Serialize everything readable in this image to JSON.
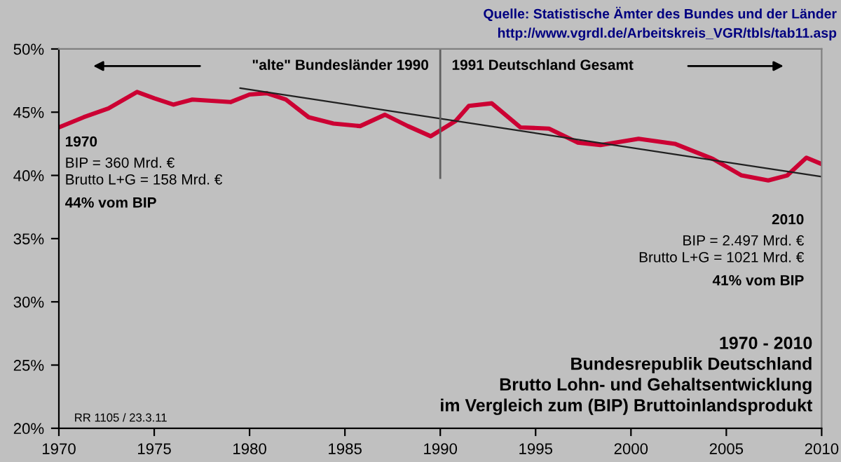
{
  "chart_data": {
    "type": "line",
    "title": "1970 - 2010\nBundesrepublik Deutschland\nBrutto Lohn- und Gehaltsentwicklung\nim Vergleich zum (BIP) Bruttoinlandsprodukt",
    "series": [
      {
        "color": "#cc0033",
        "x": [
          1970,
          1971.3,
          1972.6,
          1974.1,
          1975,
          1976,
          1977,
          1978,
          1979,
          1980,
          1980.9,
          1981.9,
          1983.1,
          1984.4,
          1985.8,
          1987.1,
          1988.3,
          1989.5,
          1990.8,
          1991.5,
          1992.7,
          1994.2,
          1995.7,
          1997.2,
          1998.4,
          2000.4,
          2002.3,
          2004.3,
          2005.8,
          2007.2,
          2008.2,
          2009.2,
          2010
        ],
        "values": [
          43.8,
          44.6,
          45.3,
          46.6,
          46.1,
          45.6,
          46.0,
          45.9,
          45.8,
          46.4,
          46.5,
          46.0,
          44.6,
          44.1,
          43.9,
          44.8,
          43.9,
          43.1,
          44.3,
          45.5,
          45.7,
          43.8,
          43.7,
          42.6,
          42.4,
          42.9,
          42.5,
          41.3,
          40.0,
          39.6,
          40.0,
          41.4,
          40.9
        ]
      },
      {
        "color": "#202020",
        "x": [
          1979.5,
          2010
        ],
        "values": [
          46.9,
          39.9
        ]
      }
    ],
    "xlim": [
      1970,
      2010
    ],
    "xticks": [
      1970,
      1975,
      1980,
      1985,
      1990,
      1995,
      2000,
      2005,
      2010
    ],
    "ylim": [
      20,
      50
    ],
    "yticks": [
      {
        "value": 20,
        "label": "20%"
      },
      {
        "value": 25,
        "label": "25%"
      },
      {
        "value": 30,
        "label": "30%"
      },
      {
        "value": 35,
        "label": "35%"
      },
      {
        "value": 40,
        "label": "40%"
      },
      {
        "value": 45,
        "label": "45%"
      },
      {
        "value": 50,
        "label": "50%"
      }
    ],
    "ref_lines": [
      {
        "axis": "x",
        "value": 1990,
        "color": "#606060"
      }
    ],
    "annotations": [
      "\"alte\" Bundesländer 1990",
      "1991 Deutschland Gesamt",
      "1970",
      "BIP = 360 Mrd. €\nBrutto L+G = 158 Mrd. €",
      "44% vom BIP",
      "2010",
      "BIP = 2.497 Mrd. €\nBrutto L+G = 1021 Mrd. €",
      "41% vom BIP",
      "Quelle: Statistische Ämter des Bundes und der Länder",
      "http://www.vgrdl.de/Arbeitskreis_VGR/tbls/tab11.asp",
      "RR 1105 / 23.3.11"
    ],
    "grid": false,
    "legend": false,
    "marker": "none",
    "line_style": "solid"
  }
}
